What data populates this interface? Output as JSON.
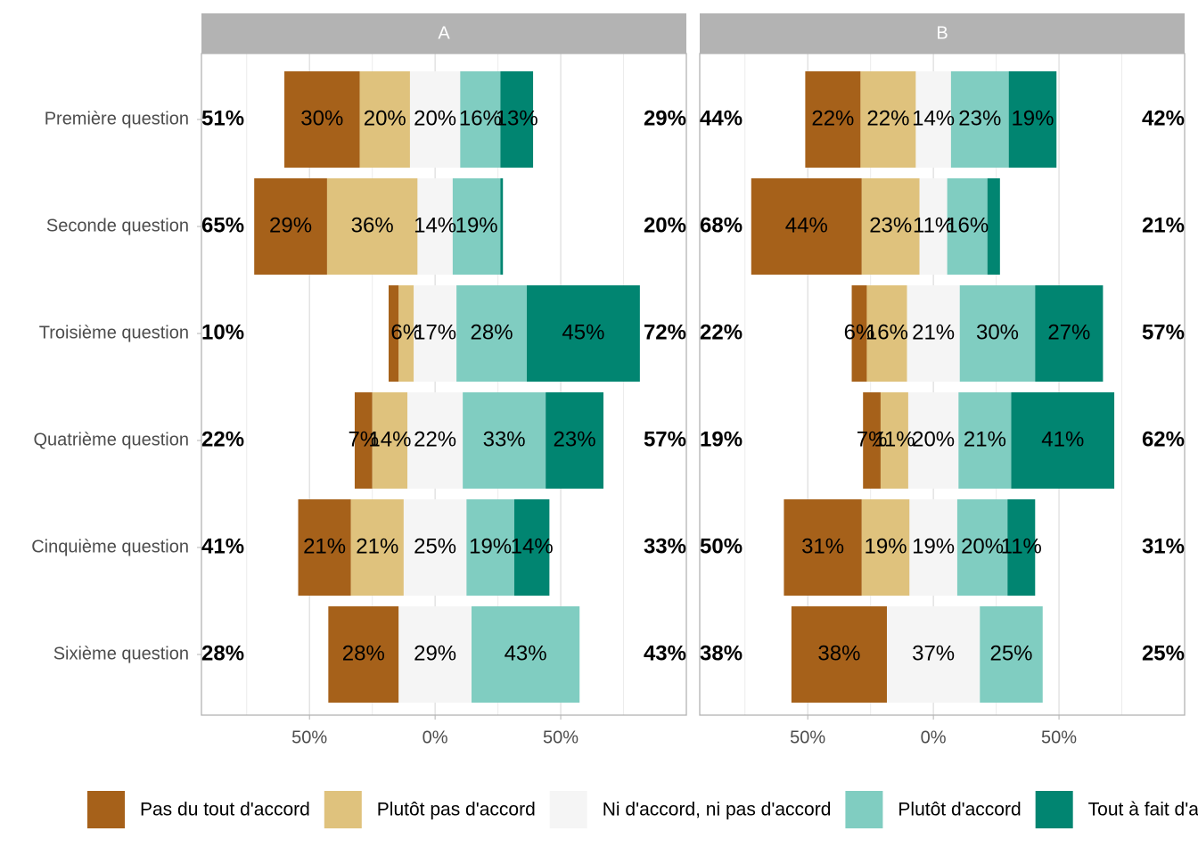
{
  "chart_data": {
    "type": "bar",
    "categories": [
      "Première question",
      "Seconde question",
      "Troisième question",
      "Quatrième question",
      "Cinquième question",
      "Sixième question"
    ],
    "xlim": [
      -93,
      100
    ],
    "xticks": [
      {
        "value": -50,
        "label": "50%"
      },
      {
        "value": 0,
        "label": "0%"
      },
      {
        "value": 50,
        "label": "50%"
      }
    ],
    "grid": true,
    "legend": "bottom",
    "series": [
      {
        "name": "Pas du tout d'accord",
        "color": "#A6611A"
      },
      {
        "name": "Plutôt pas d'accord",
        "color": "#DFC27D"
      },
      {
        "name": "Ni d'accord, ni pas d'accord",
        "color": "#F5F5F5"
      },
      {
        "name": "Plutôt d'accord",
        "color": "#80CDC1"
      },
      {
        "name": "Tout à fait d'accord",
        "color": "#018571"
      }
    ],
    "facets": [
      {
        "title": "A",
        "series": [
          {
            "values": [
              30,
              29,
              4,
              7,
              21,
              28
            ],
            "value_labels": [
              "30%",
              "29%",
              null,
              "7%",
              "21%",
              "28%"
            ]
          },
          {
            "values": [
              20,
              36,
              6,
              14,
              21,
              0
            ],
            "value_labels": [
              "20%",
              "36%",
              "6%",
              "14%",
              "21%",
              null
            ]
          },
          {
            "values": [
              20,
              14,
              17,
              22,
              25,
              29
            ],
            "value_labels": [
              "20%",
              "14%",
              "17%",
              "22%",
              "25%",
              "29%"
            ]
          },
          {
            "values": [
              16,
              19,
              28,
              33,
              19,
              43
            ],
            "value_labels": [
              "16%",
              "19%",
              "28%",
              "33%",
              "19%",
              "43%"
            ]
          },
          {
            "values": [
              13,
              1,
              45,
              23,
              14,
              0
            ],
            "value_labels": [
              "13%",
              null,
              "45%",
              "23%",
              "14%",
              null
            ]
          }
        ],
        "left_labels": [
          "51%",
          "65%",
          "10%",
          "22%",
          "41%",
          "28%"
        ],
        "right_labels": [
          "29%",
          "20%",
          "72%",
          "57%",
          "33%",
          "43%"
        ]
      },
      {
        "title": "B",
        "series": [
          {
            "values": [
              22,
              44,
              6,
              7,
              31,
              38
            ],
            "value_labels": [
              "22%",
              "44%",
              "6%",
              "7%",
              "31%",
              "38%"
            ]
          },
          {
            "values": [
              22,
              23,
              16,
              11,
              19,
              0
            ],
            "value_labels": [
              "22%",
              "23%",
              "16%",
              "11%",
              "19%",
              null
            ]
          },
          {
            "values": [
              14,
              11,
              21,
              20,
              19,
              37
            ],
            "value_labels": [
              "14%",
              "11%",
              "21%",
              "20%",
              "19%",
              "37%"
            ]
          },
          {
            "values": [
              23,
              16,
              30,
              21,
              20,
              25
            ],
            "value_labels": [
              "23%",
              "16%",
              "30%",
              "21%",
              "20%",
              "25%"
            ]
          },
          {
            "values": [
              19,
              5,
              27,
              41,
              11,
              0
            ],
            "value_labels": [
              "19%",
              null,
              "27%",
              "41%",
              "11%",
              null
            ]
          }
        ],
        "left_labels": [
          "44%",
          "68%",
          "22%",
          "19%",
          "50%",
          "38%"
        ],
        "right_labels": [
          "42%",
          "21%",
          "57%",
          "62%",
          "31%",
          "25%"
        ]
      }
    ]
  }
}
